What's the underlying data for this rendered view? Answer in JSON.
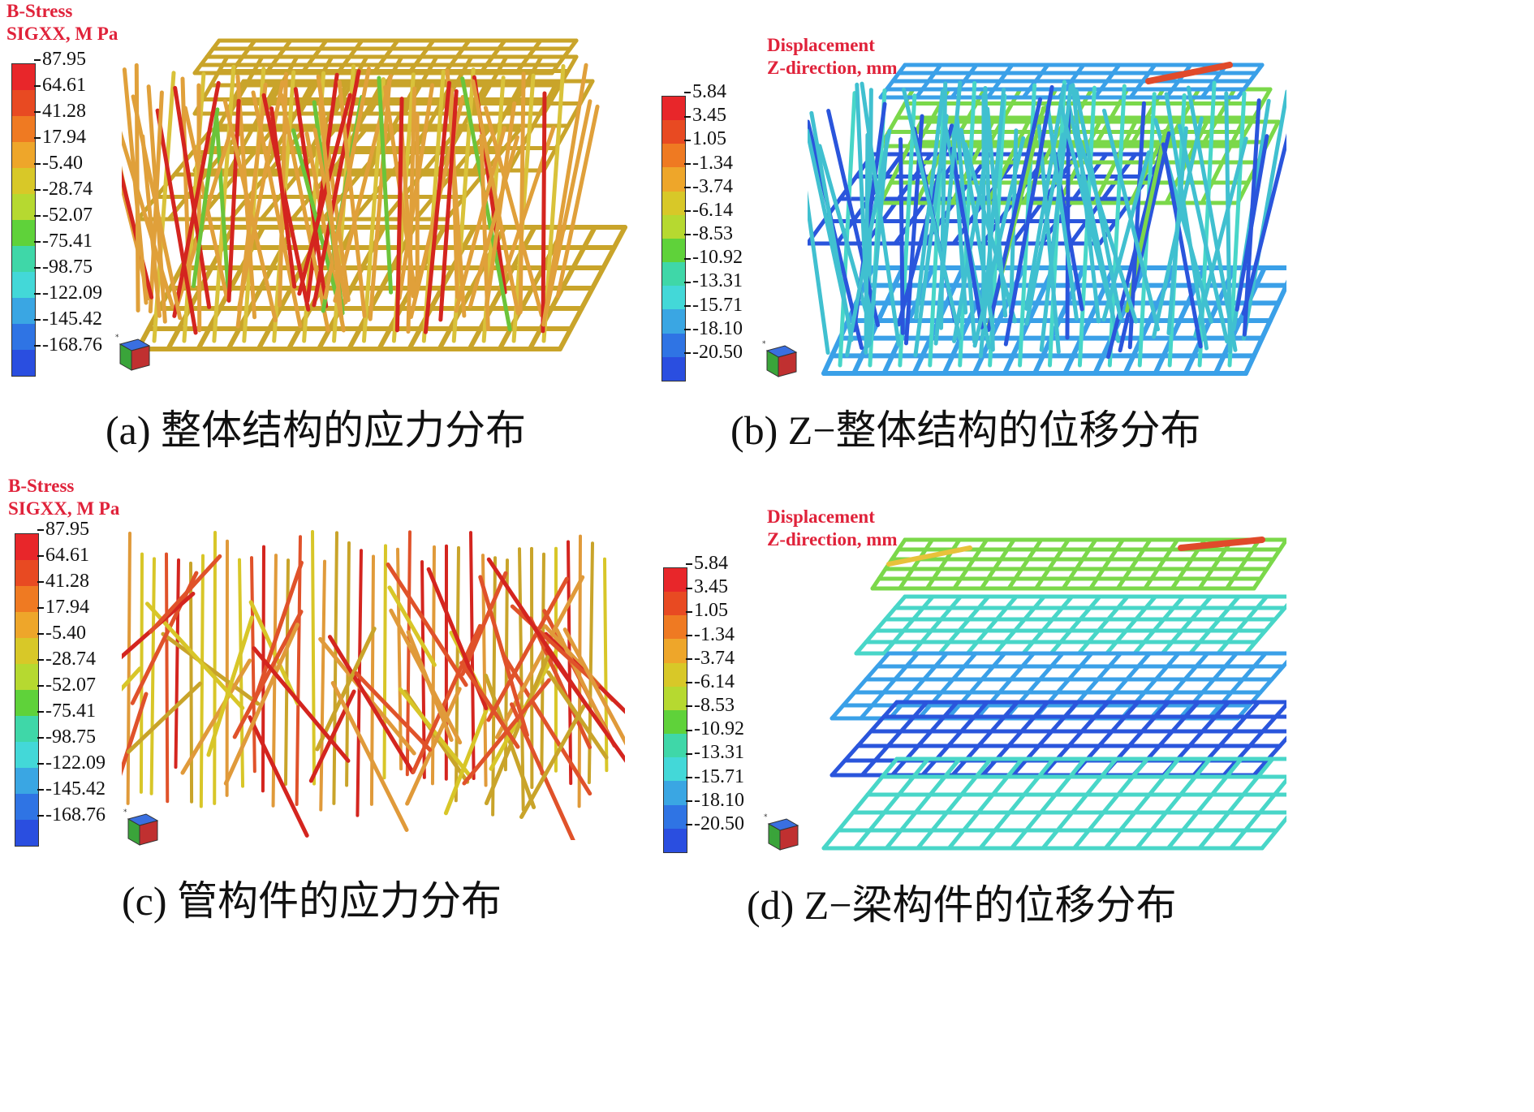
{
  "panels": {
    "a": {
      "legend_title": [
        "B-Stress",
        "SIGXX, M Pa"
      ],
      "legend_values": [
        "87.95",
        "64.61",
        "41.28",
        "17.94",
        "-5.40",
        "-28.74",
        "-52.07",
        "-75.41",
        "-98.75",
        "-122.09",
        "-145.42",
        "-168.76"
      ],
      "caption": "(a) 整体结构的应力分布"
    },
    "b": {
      "legend_title": [
        "Displacement",
        "Z-direction, mm"
      ],
      "legend_values": [
        "5.84",
        "3.45",
        "1.05",
        "-1.34",
        "-3.74",
        "-6.14",
        "-8.53",
        "-10.92",
        "-13.31",
        "-15.71",
        "-18.10",
        "-20.50"
      ],
      "caption": "(b) Z−整体结构的位移分布"
    },
    "c": {
      "legend_title": [
        "B-Stress",
        "SIGXX, M Pa"
      ],
      "legend_values": [
        "87.95",
        "64.61",
        "41.28",
        "17.94",
        "-5.40",
        "-28.74",
        "-52.07",
        "-75.41",
        "-98.75",
        "-122.09",
        "-145.42",
        "-168.76"
      ],
      "caption": "(c) 管构件的应力分布"
    },
    "d": {
      "legend_title": [
        "Displacement",
        "Z-direction, mm"
      ],
      "legend_values": [
        "5.84",
        "3.45",
        "1.05",
        "-1.34",
        "-3.74",
        "-6.14",
        "-8.53",
        "-10.92",
        "-13.31",
        "-15.71",
        "-18.10",
        "-20.50"
      ],
      "caption": "(d) Z−梁构件的位移分布"
    }
  },
  "legend_colors": [
    "#e8262a",
    "#e84a22",
    "#ef7a22",
    "#eea62a",
    "#d8c828",
    "#b6d930",
    "#5fd23a",
    "#3fd7a8",
    "#43d8d8",
    "#3aa6e3",
    "#2f74e4",
    "#2a4ee0"
  ],
  "colors": {
    "stress_base": "#c9a42a",
    "stress_hot": "#e0522a",
    "stress_red": "#d4251f",
    "stress_green": "#6bc43a",
    "disp_base": "#3aa0e8",
    "disp_deep": "#2a55dc",
    "disp_cyan": "#48d6c8",
    "disp_green": "#7bd84a",
    "disp_yellow": "#e8c23a",
    "disp_red": "#e04a2a"
  },
  "icons": {
    "view_cube": "axis-orientation-cube-icon"
  }
}
